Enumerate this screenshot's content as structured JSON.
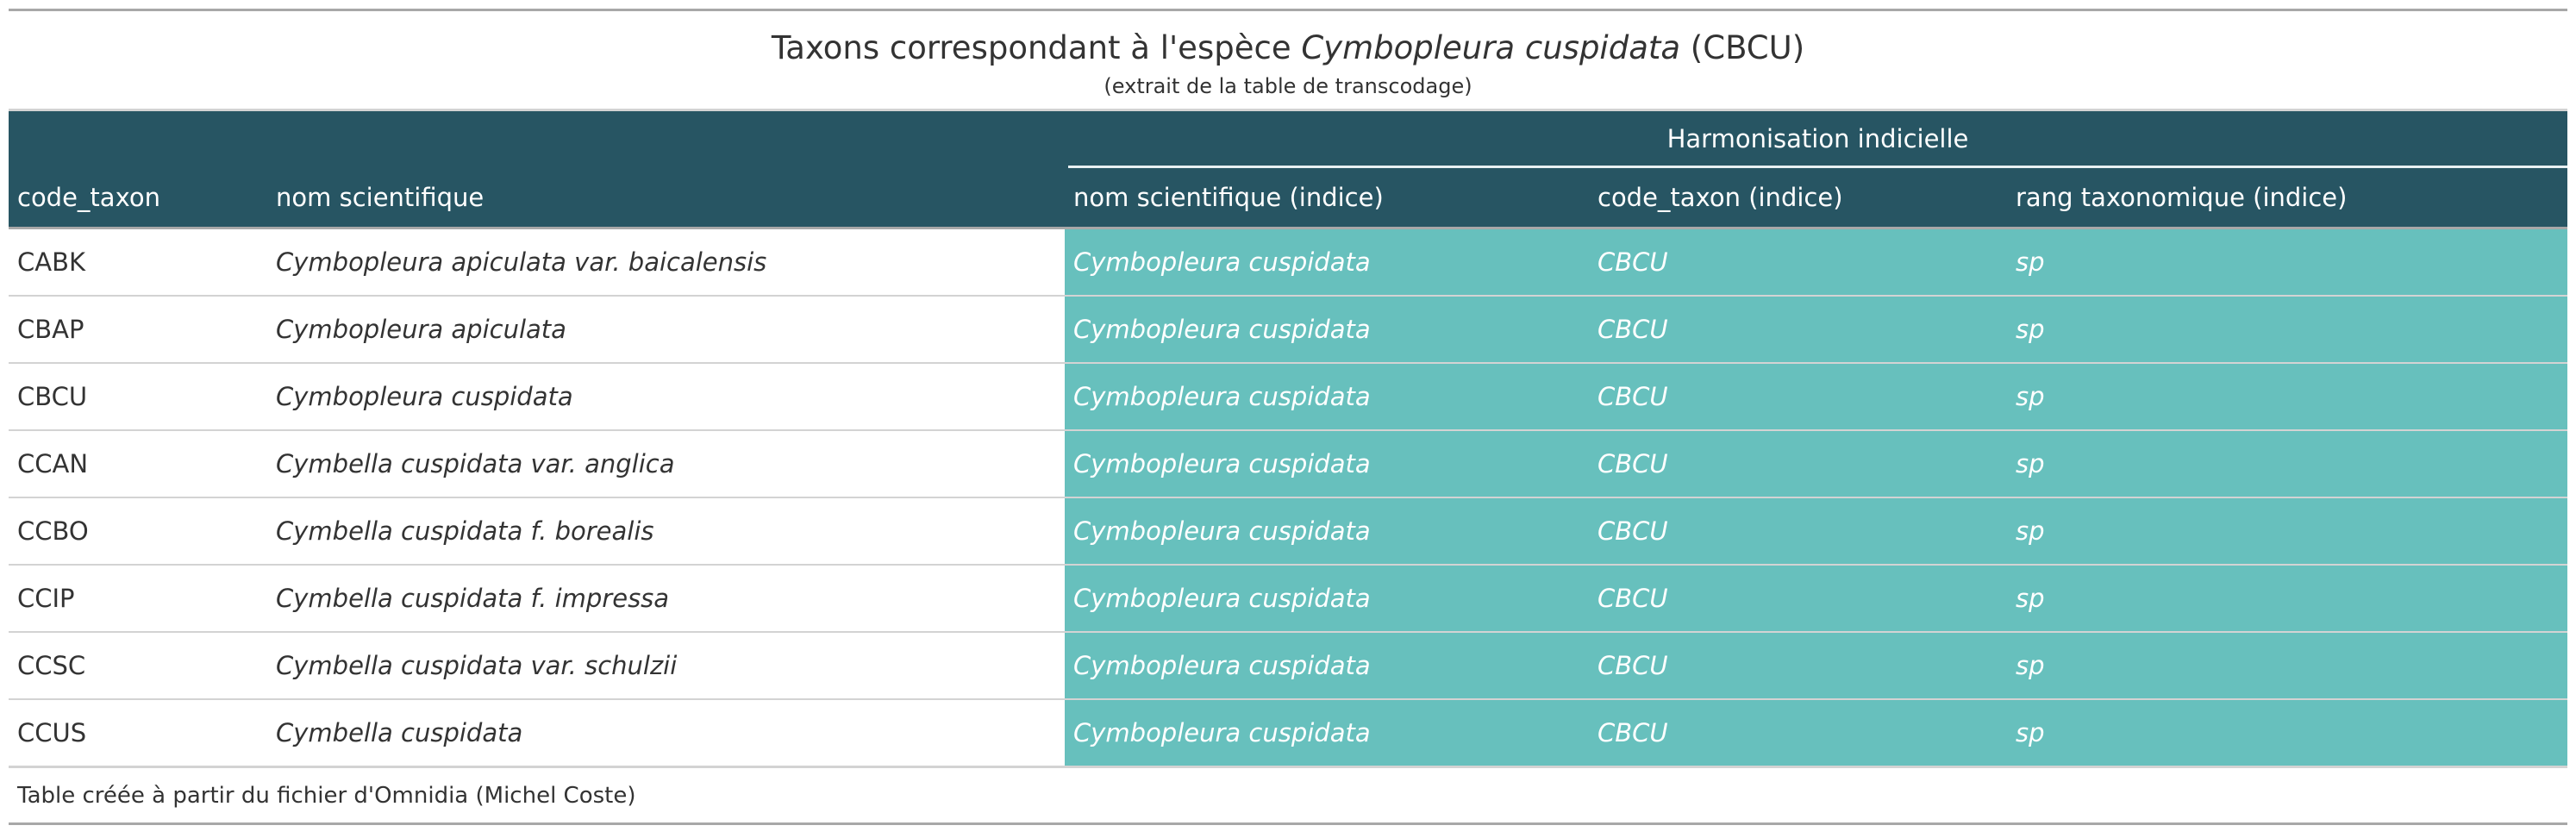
{
  "title": {
    "prefix": "Taxons correspondant à l'espèce ",
    "species": "Cymbopleura cuspidata",
    "suffix": " (CBCU)"
  },
  "subtitle": "(extrait de la table de transcodage)",
  "spanner_label": "Harmonisation indicielle",
  "columns": [
    "code_taxon",
    "nom scientifique",
    "nom scientifique (indice)",
    "code_taxon (indice)",
    "rang taxonomique (indice)"
  ],
  "rows": [
    {
      "code": "CABK",
      "nom": "Cymbopleura apiculata var. baicalensis",
      "nom_indice": "Cymbopleura cuspidata",
      "code_indice": "CBCU",
      "rang": "sp"
    },
    {
      "code": "CBAP",
      "nom": "Cymbopleura apiculata",
      "nom_indice": "Cymbopleura cuspidata",
      "code_indice": "CBCU",
      "rang": "sp"
    },
    {
      "code": "CBCU",
      "nom": "Cymbopleura cuspidata",
      "nom_indice": "Cymbopleura cuspidata",
      "code_indice": "CBCU",
      "rang": "sp"
    },
    {
      "code": "CCAN",
      "nom": "Cymbella cuspidata var. anglica",
      "nom_indice": "Cymbopleura cuspidata",
      "code_indice": "CBCU",
      "rang": "sp"
    },
    {
      "code": "CCBO",
      "nom": "Cymbella cuspidata f. borealis",
      "nom_indice": "Cymbopleura cuspidata",
      "code_indice": "CBCU",
      "rang": "sp"
    },
    {
      "code": "CCIP",
      "nom": "Cymbella cuspidata f. impressa",
      "nom_indice": "Cymbopleura cuspidata",
      "code_indice": "CBCU",
      "rang": "sp"
    },
    {
      "code": "CCSC",
      "nom": "Cymbella cuspidata var. schulzii",
      "nom_indice": "Cymbopleura cuspidata",
      "code_indice": "CBCU",
      "rang": "sp"
    },
    {
      "code": "CCUS",
      "nom": "Cymbella cuspidata",
      "nom_indice": "Cymbopleura cuspidata",
      "code_indice": "CBCU",
      "rang": "sp"
    }
  ],
  "source_note": "Table créée à partir du fichier d'Omnidia (Michel Coste)",
  "colors": {
    "header_bg": "#275563",
    "harmonisation_bg": "#67c0bd",
    "rule": "#a8a8a8"
  }
}
